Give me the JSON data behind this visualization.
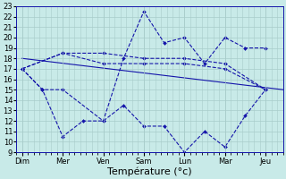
{
  "background_color": "#c8eae8",
  "grid_color": "#a8ccca",
  "line_color": "#1414aa",
  "xlabel": "Température (°c)",
  "xlabel_fontsize": 8,
  "ylim": [
    9,
    23
  ],
  "yticks": [
    9,
    10,
    11,
    12,
    13,
    14,
    15,
    16,
    17,
    18,
    19,
    20,
    21,
    22,
    23
  ],
  "day_labels": [
    "Dim",
    "Mer",
    "Ven",
    "Sam",
    "Lun",
    "Mar",
    "Jeu"
  ],
  "day_positions": [
    0,
    14,
    28,
    42,
    56,
    70,
    84
  ],
  "xlim": [
    -2,
    90
  ],
  "lines": [
    {
      "x": [
        0,
        90
      ],
      "y": [
        18,
        15
      ],
      "linestyle": "-"
    },
    {
      "x": [
        0,
        14,
        28,
        42,
        56,
        70,
        84
      ],
      "y": [
        17,
        18.5,
        18.5,
        18,
        18,
        17.5,
        15
      ],
      "linestyle": "--"
    },
    {
      "x": [
        0,
        14,
        28,
        42,
        56,
        70,
        84
      ],
      "y": [
        17,
        18.5,
        17.5,
        17.5,
        17.5,
        17,
        15
      ],
      "linestyle": "--"
    },
    {
      "x": [
        0,
        7,
        14,
        28,
        35,
        42,
        49,
        56,
        63,
        70,
        77,
        84
      ],
      "y": [
        17,
        15,
        15,
        12,
        18,
        22.5,
        19.5,
        20,
        17.5,
        20,
        19,
        19
      ],
      "linestyle": "--"
    },
    {
      "x": [
        0,
        7,
        14,
        21,
        28,
        35,
        42,
        49,
        56,
        63,
        70,
        77,
        84
      ],
      "y": [
        17,
        15,
        10.5,
        12,
        12,
        13.5,
        11.5,
        11.5,
        9,
        11,
        9.5,
        12.5,
        15
      ],
      "linestyle": "--"
    }
  ],
  "tick_fontsize": 6,
  "marker": "D",
  "markersize": 2,
  "linewidth": 0.8
}
